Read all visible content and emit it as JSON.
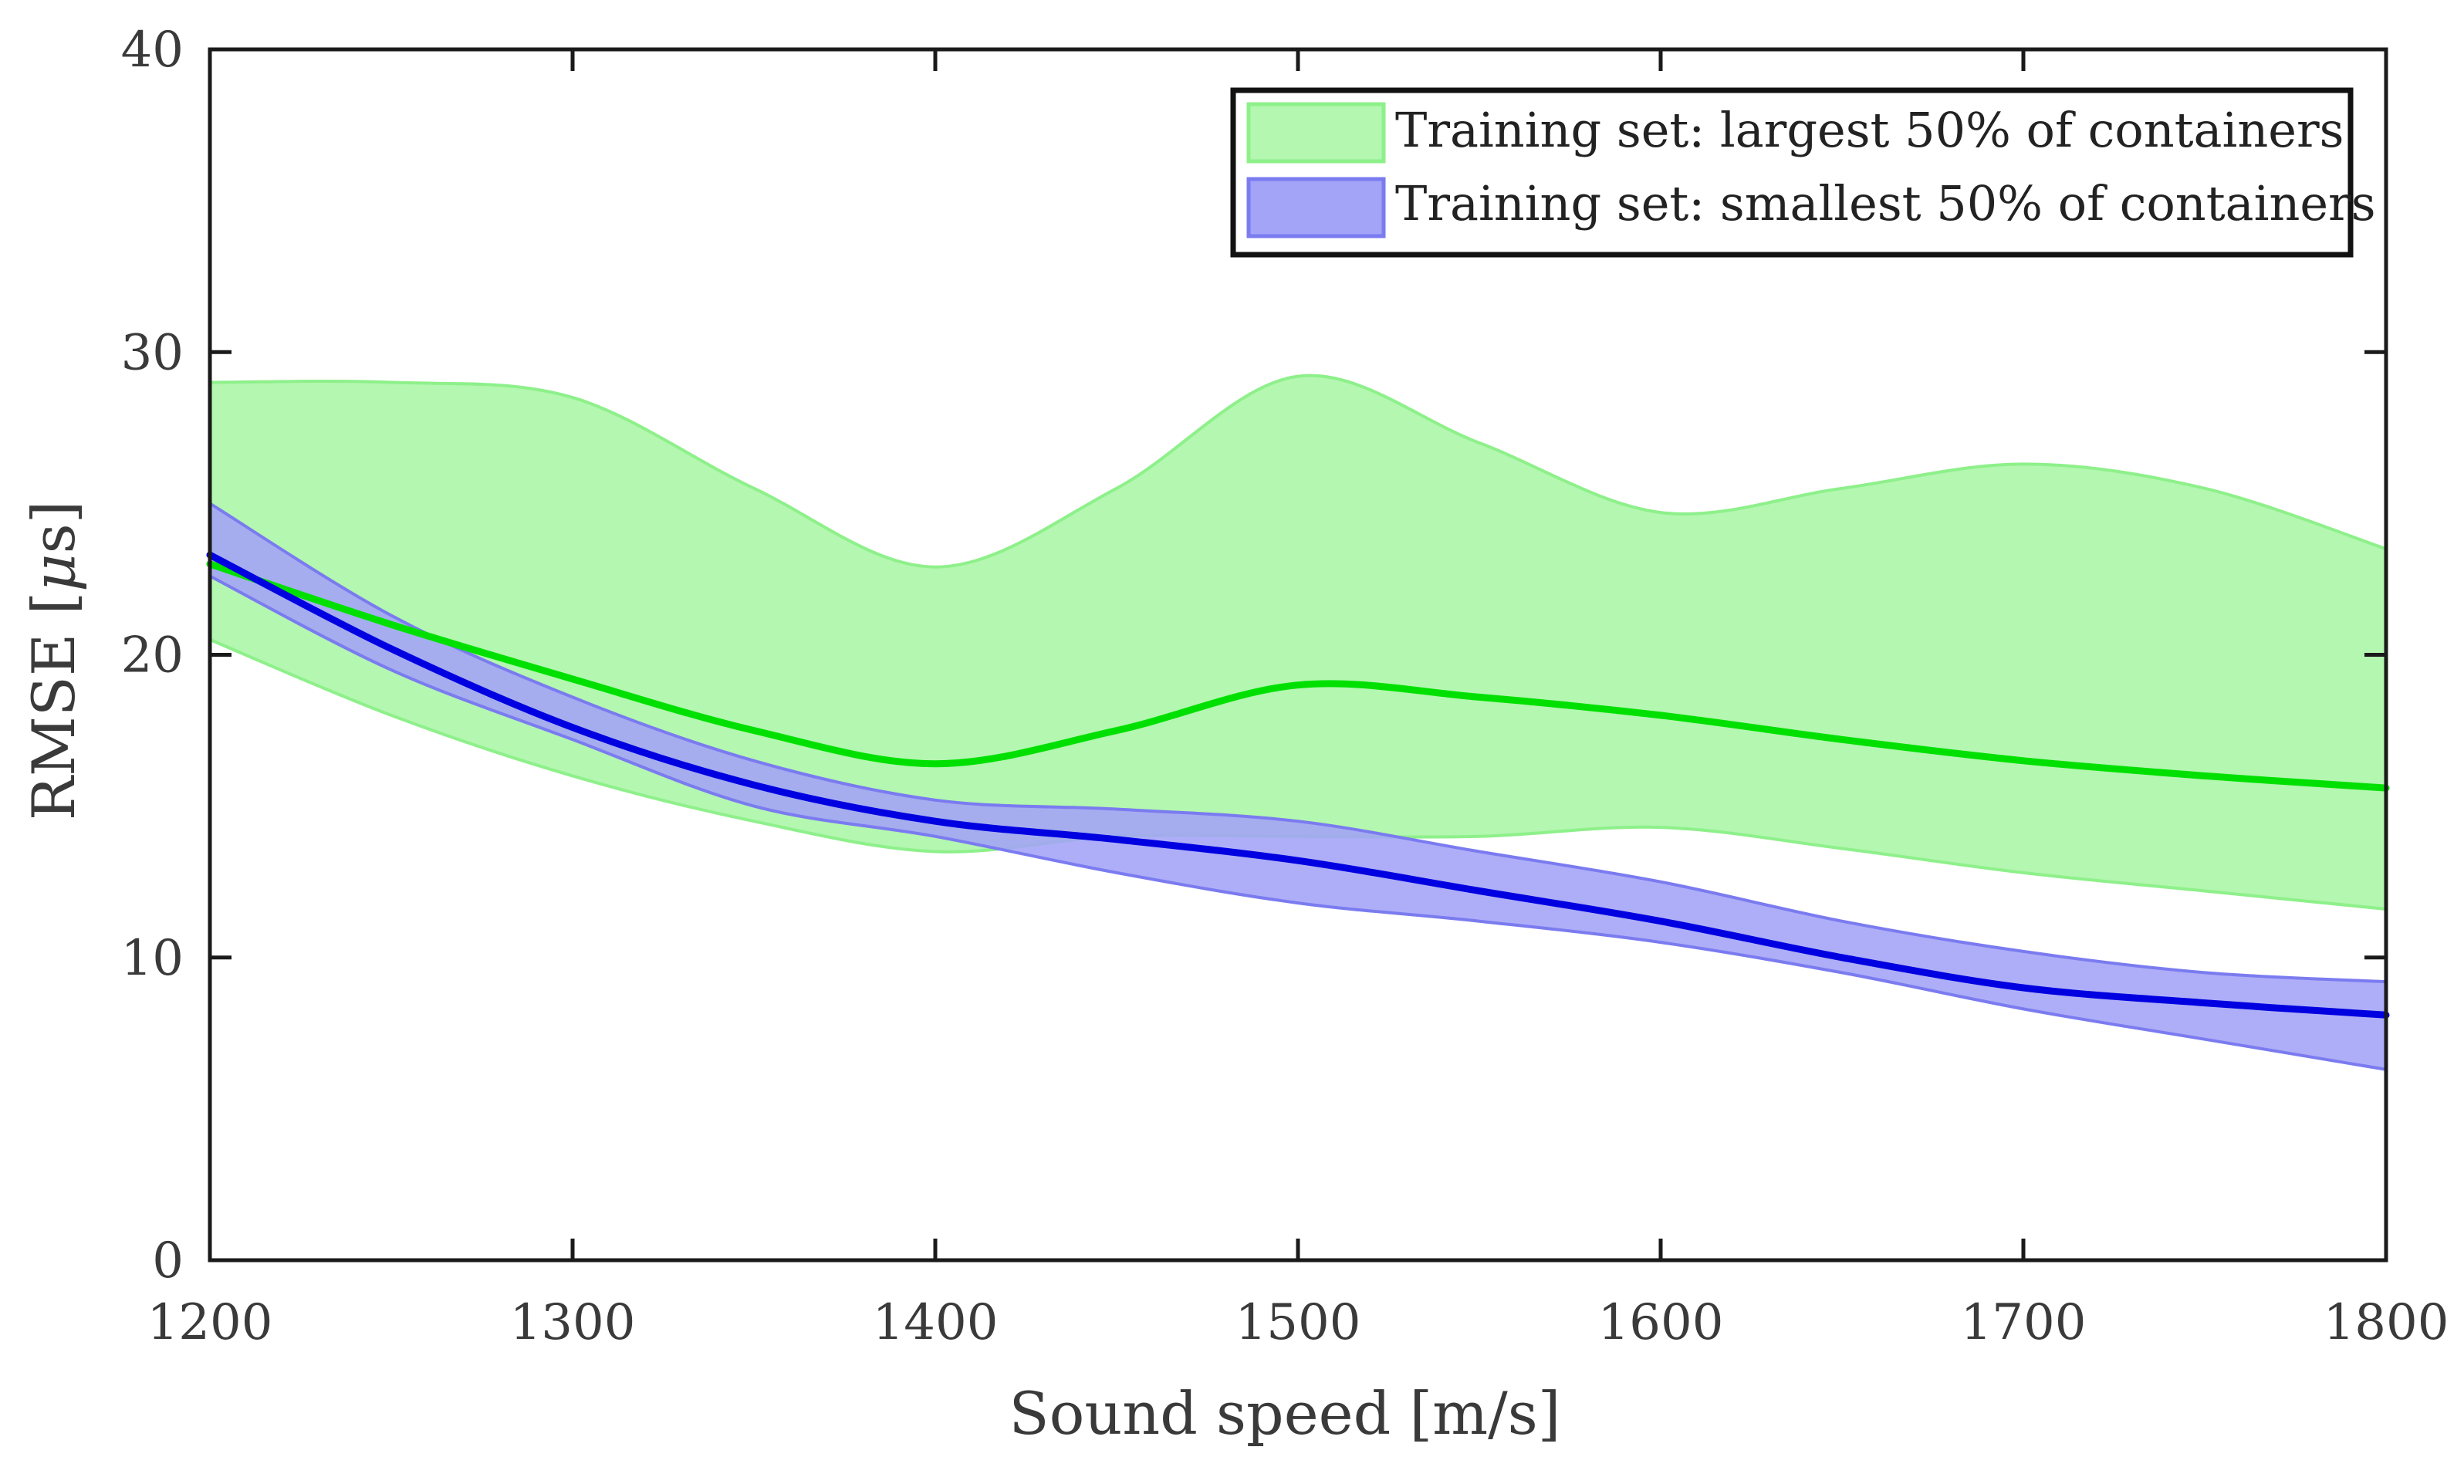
{
  "chart_data": {
    "type": "area",
    "title": "",
    "xlabel": "Sound speed [m/s]",
    "ylabel": "RMSE [",
    "ylabel_mu": "μ",
    "ylabel_suffix": "s]",
    "xlim": [
      1200,
      1800
    ],
    "ylim": [
      0,
      40
    ],
    "xticks": [
      1200,
      1300,
      1400,
      1500,
      1600,
      1700,
      1800
    ],
    "yticks": [
      0,
      10,
      20,
      30,
      40
    ],
    "grid": false,
    "legend_position": "top-right",
    "series": [
      {
        "name": "Training set: largest 50% of containers",
        "line_color": "#00e000",
        "band_fill": "#b3f7b0",
        "band_edge": "#8ef08a",
        "x": [
          1200,
          1250,
          1300,
          1350,
          1400,
          1450,
          1500,
          1550,
          1600,
          1650,
          1700,
          1750,
          1800
        ],
        "mean": [
          23.0,
          21.0,
          19.2,
          17.5,
          16.4,
          17.5,
          19.0,
          18.6,
          18.0,
          17.2,
          16.5,
          16.0,
          15.6
        ],
        "upper": [
          29.0,
          29.0,
          28.5,
          25.5,
          22.9,
          25.5,
          29.2,
          27.0,
          24.7,
          25.5,
          26.3,
          25.5,
          23.5
        ],
        "lower": [
          20.5,
          18.0,
          16.0,
          14.5,
          13.5,
          14.0,
          14.0,
          14.0,
          14.3,
          13.6,
          12.8,
          12.2,
          11.6
        ]
      },
      {
        "name": "Training set: smallest 50% of containers",
        "line_color": "#0000e0",
        "band_fill": "#a3a3f7",
        "band_edge": "#7b7bf0",
        "x": [
          1200,
          1250,
          1300,
          1350,
          1400,
          1450,
          1500,
          1550,
          1600,
          1650,
          1700,
          1750,
          1800
        ],
        "mean": [
          23.3,
          20.2,
          17.6,
          15.7,
          14.5,
          13.9,
          13.2,
          12.2,
          11.2,
          10.0,
          9.0,
          8.5,
          8.1
        ],
        "upper": [
          25.0,
          21.3,
          18.6,
          16.5,
          15.2,
          14.9,
          14.5,
          13.5,
          12.5,
          11.2,
          10.2,
          9.5,
          9.2
        ],
        "lower": [
          22.6,
          19.5,
          17.2,
          15.0,
          14.0,
          12.8,
          11.8,
          11.2,
          10.5,
          9.5,
          8.3,
          7.3,
          6.3
        ]
      }
    ]
  }
}
